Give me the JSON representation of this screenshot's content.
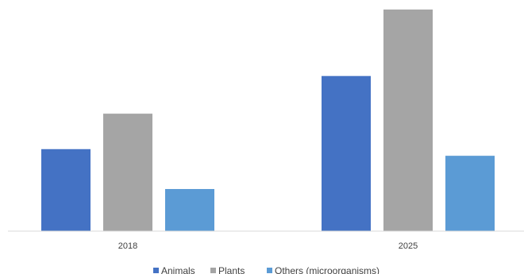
{
  "chart_data": {
    "type": "bar",
    "categories": [
      "2018",
      "2025"
    ],
    "series": [
      {
        "name": "Animals",
        "values": [
          37,
          70
        ],
        "color": "#4472c4"
      },
      {
        "name": "Plants",
        "values": [
          53,
          100
        ],
        "color": "#a5a5a5"
      },
      {
        "name": "Others (microorganisms)",
        "values": [
          19,
          34
        ],
        "color": "#5b9bd5"
      }
    ],
    "ylim": [
      0,
      100
    ],
    "grid": false,
    "legend_position": "bottom"
  }
}
